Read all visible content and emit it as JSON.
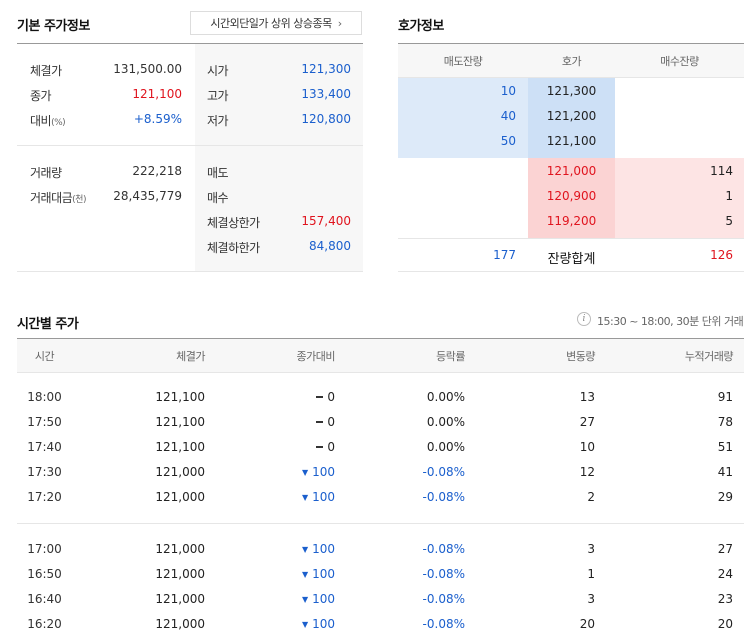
{
  "basic": {
    "title": "기본 주가정보",
    "after_hours_button": "시간외단일가 상위 상승종목",
    "left_rows": [
      {
        "label": "체결가",
        "unit": "",
        "value": "131,500.00",
        "color": "#333333"
      },
      {
        "label": "종가",
        "unit": "",
        "value": "121,100",
        "color": "#e0141e"
      },
      {
        "label": "대비",
        "unit": "(%)",
        "value": "+8.59%",
        "color": "#1b5fcd"
      }
    ],
    "right_rows": [
      {
        "label": "시가",
        "value": "121,300",
        "color": "#1b5fcd"
      },
      {
        "label": "고가",
        "value": "133,400",
        "color": "#1b5fcd"
      },
      {
        "label": "저가",
        "value": "120,800",
        "color": "#1b5fcd"
      }
    ],
    "left_rows2": [
      {
        "label": "거래량",
        "unit": "",
        "value": "222,218"
      },
      {
        "label": "거래대금",
        "unit": "(천)",
        "value": "28,435,779"
      }
    ],
    "right_rows2": [
      {
        "label": "매도",
        "value": "",
        "color": "#333333"
      },
      {
        "label": "매수",
        "value": "",
        "color": "#333333"
      },
      {
        "label": "체결상한가",
        "value": "157,400",
        "color": "#e0141e"
      },
      {
        "label": "체결하한가",
        "value": "84,800",
        "color": "#1b5fcd"
      }
    ]
  },
  "orderbook": {
    "title": "호가정보",
    "headers": {
      "ask": "매도잔량",
      "price": "호가",
      "bid": "매수잔량"
    },
    "asks": [
      {
        "qty": "10",
        "price": "121,300"
      },
      {
        "qty": "40",
        "price": "121,200"
      },
      {
        "qty": "50",
        "price": "121,100"
      }
    ],
    "bids": [
      {
        "price": "121,000",
        "qty": "114"
      },
      {
        "price": "120,900",
        "qty": "1"
      },
      {
        "price": "119,200",
        "qty": "5"
      }
    ],
    "total": {
      "ask": "177",
      "label": "잔량합계",
      "bid": "126"
    }
  },
  "timeprice": {
    "title": "시간별 주가",
    "info": "15:30 ~ 18:00, 30분 단위 거래",
    "info_icon": "info-icon",
    "headers": [
      "시간",
      "체결가",
      "종가대비",
      "등락률",
      "변동량",
      "누적거래량"
    ],
    "group1": [
      {
        "time": "18:00",
        "price": "121,100",
        "dir": "flat",
        "diff": "0",
        "rate": "0.00%",
        "vol": "13",
        "cum": "91"
      },
      {
        "time": "17:50",
        "price": "121,100",
        "dir": "flat",
        "diff": "0",
        "rate": "0.00%",
        "vol": "27",
        "cum": "78"
      },
      {
        "time": "17:40",
        "price": "121,100",
        "dir": "flat",
        "diff": "0",
        "rate": "0.00%",
        "vol": "10",
        "cum": "51"
      },
      {
        "time": "17:30",
        "price": "121,000",
        "dir": "down",
        "diff": "100",
        "rate": "-0.08%",
        "vol": "12",
        "cum": "41"
      },
      {
        "time": "17:20",
        "price": "121,000",
        "dir": "down",
        "diff": "100",
        "rate": "-0.08%",
        "vol": "2",
        "cum": "29"
      }
    ],
    "group2": [
      {
        "time": "17:00",
        "price": "121,000",
        "dir": "down",
        "diff": "100",
        "rate": "-0.08%",
        "vol": "3",
        "cum": "27"
      },
      {
        "time": "16:50",
        "price": "121,000",
        "dir": "down",
        "diff": "100",
        "rate": "-0.08%",
        "vol": "1",
        "cum": "24"
      },
      {
        "time": "16:40",
        "price": "121,000",
        "dir": "down",
        "diff": "100",
        "rate": "-0.08%",
        "vol": "3",
        "cum": "23"
      },
      {
        "time": "16:20",
        "price": "121,000",
        "dir": "down",
        "diff": "100",
        "rate": "-0.08%",
        "vol": "20",
        "cum": "20"
      }
    ]
  }
}
